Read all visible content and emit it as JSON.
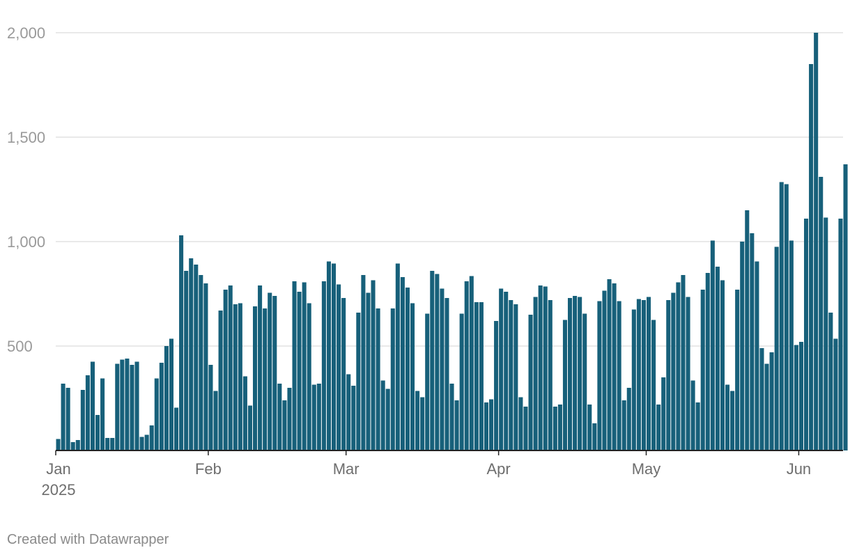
{
  "chart_data": {
    "type": "bar",
    "title": "",
    "xlabel": "",
    "ylabel": "",
    "ylim": [
      0,
      2000
    ],
    "y_ticks": [
      500,
      1000,
      1500,
      2000
    ],
    "y_tick_labels": [
      "500",
      "1,000",
      "1,500",
      "2,000"
    ],
    "grid": "horizontal",
    "x_start": "2025-01-01",
    "x_end": "2025-06-09",
    "x_ticks": [
      {
        "date": "2025-01-01",
        "label": "Jan",
        "sublabel": "2025"
      },
      {
        "date": "2025-02-01",
        "label": "Feb"
      },
      {
        "date": "2025-03-01",
        "label": "Mar"
      },
      {
        "date": "2025-04-01",
        "label": "Apr"
      },
      {
        "date": "2025-05-01",
        "label": "May"
      },
      {
        "date": "2025-06-01",
        "label": "Jun"
      }
    ],
    "series": [
      {
        "color": "#17607a",
        "values": [
          55,
          320,
          300,
          40,
          50,
          290,
          360,
          425,
          170,
          345,
          60,
          60,
          415,
          435,
          440,
          410,
          425,
          65,
          75,
          120,
          345,
          420,
          500,
          535,
          205,
          1030,
          860,
          920,
          890,
          840,
          800,
          410,
          285,
          670,
          770,
          790,
          700,
          705,
          355,
          215,
          690,
          790,
          680,
          755,
          740,
          320,
          240,
          300,
          810,
          760,
          805,
          705,
          315,
          320,
          810,
          905,
          895,
          795,
          730,
          365,
          310,
          660,
          840,
          755,
          815,
          680,
          335,
          295,
          680,
          895,
          830,
          780,
          705,
          285,
          255,
          655,
          860,
          845,
          775,
          730,
          320,
          240,
          655,
          810,
          835,
          710,
          710,
          230,
          245,
          620,
          775,
          760,
          720,
          700,
          255,
          210,
          650,
          735,
          790,
          785,
          720,
          210,
          220,
          625,
          730,
          740,
          735,
          655,
          220,
          130,
          715,
          765,
          820,
          800,
          715,
          240,
          300,
          675,
          725,
          720,
          735,
          625,
          220,
          350,
          720,
          755,
          805,
          840,
          735,
          335,
          230,
          770,
          850,
          1005,
          880,
          815,
          315,
          285,
          770,
          1000,
          1150,
          1040,
          905,
          490,
          415,
          470,
          975,
          1285,
          1275,
          1005,
          505,
          520,
          1110,
          1850,
          2000,
          1310,
          1115,
          660,
          535,
          1110,
          1370
        ]
      }
    ]
  },
  "footer": {
    "credit": "Created with Datawrapper"
  }
}
